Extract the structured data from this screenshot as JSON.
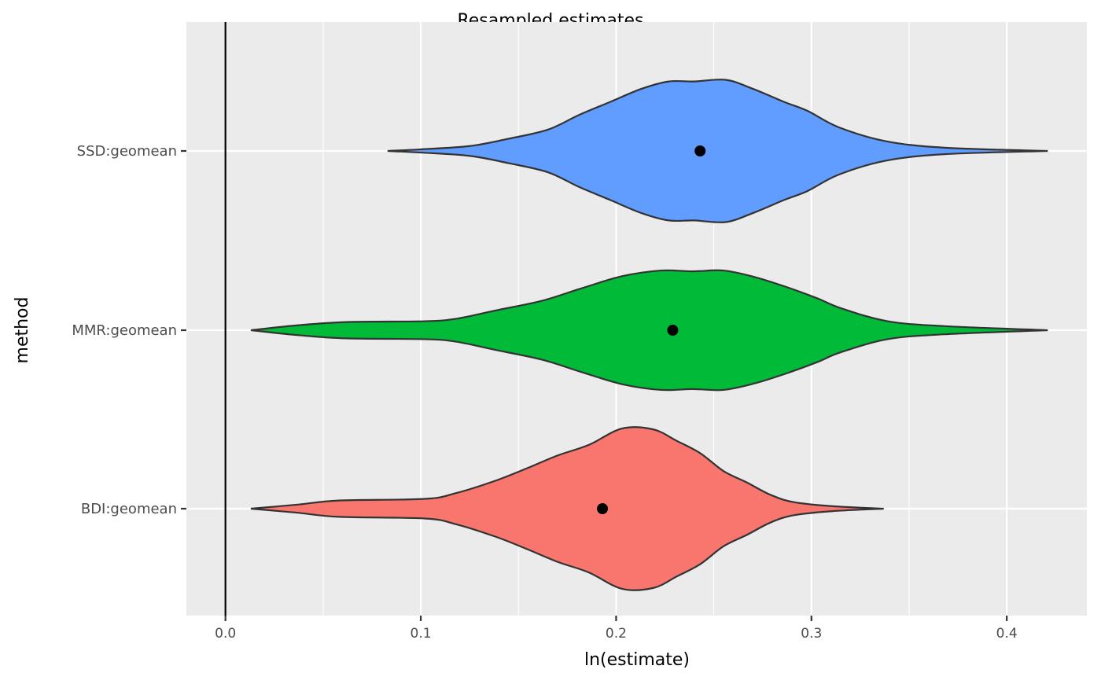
{
  "chart_data": {
    "type": "violin",
    "title": "Resampled estimates",
    "xlabel": "ln(estimate)",
    "ylabel": "method",
    "xlim": [
      -0.02,
      0.441
    ],
    "x_ticks": [
      0.0,
      0.1,
      0.2,
      0.3,
      0.4
    ],
    "x_tick_labels": [
      "0.0",
      "0.1",
      "0.2",
      "0.3",
      "0.4"
    ],
    "x_minor_ticks": [
      0.05,
      0.15,
      0.25,
      0.35
    ],
    "categories": [
      "SSD:geomean",
      "MMR:geomean",
      "BDI:geomean"
    ],
    "reference_line_x": 0,
    "grid": true,
    "panel_background": "#EBEBEB",
    "series": [
      {
        "category": "SSD:geomean",
        "color": "#619CFF",
        "point_estimate": 0.243,
        "density": {
          "x": [
            0.083,
            0.1,
            0.125,
            0.145,
            0.165,
            0.181,
            0.197,
            0.213,
            0.227,
            0.24,
            0.256,
            0.27,
            0.286,
            0.298,
            0.314,
            0.338,
            0.368,
            0.421
          ],
          "relative_width": [
            0,
            0.02,
            0.06,
            0.15,
            0.26,
            0.44,
            0.6,
            0.76,
            0.85,
            0.85,
            0.87,
            0.76,
            0.6,
            0.49,
            0.29,
            0.12,
            0.04,
            0
          ]
        }
      },
      {
        "category": "MMR:geomean",
        "color": "#00BA38",
        "point_estimate": 0.229,
        "density": {
          "x": [
            0.013,
            0.037,
            0.062,
            0.102,
            0.118,
            0.138,
            0.162,
            0.182,
            0.203,
            0.223,
            0.239,
            0.255,
            0.271,
            0.287,
            0.303,
            0.315,
            0.339,
            0.368,
            0.421
          ],
          "relative_width": [
            0,
            0.06,
            0.1,
            0.11,
            0.14,
            0.24,
            0.36,
            0.51,
            0.66,
            0.73,
            0.72,
            0.73,
            0.65,
            0.53,
            0.39,
            0.27,
            0.11,
            0.05,
            0
          ]
        }
      },
      {
        "category": "BDI:geomean",
        "color": "#F8766D",
        "point_estimate": 0.193,
        "density": {
          "x": [
            0.013,
            0.037,
            0.058,
            0.102,
            0.118,
            0.138,
            0.154,
            0.17,
            0.186,
            0.203,
            0.219,
            0.231,
            0.243,
            0.255,
            0.267,
            0.279,
            0.291,
            0.311,
            0.337
          ],
          "relative_width": [
            0,
            0.05,
            0.1,
            0.12,
            0.19,
            0.34,
            0.49,
            0.65,
            0.78,
            0.98,
            0.97,
            0.83,
            0.68,
            0.46,
            0.32,
            0.17,
            0.08,
            0.03,
            0
          ]
        }
      }
    ]
  }
}
